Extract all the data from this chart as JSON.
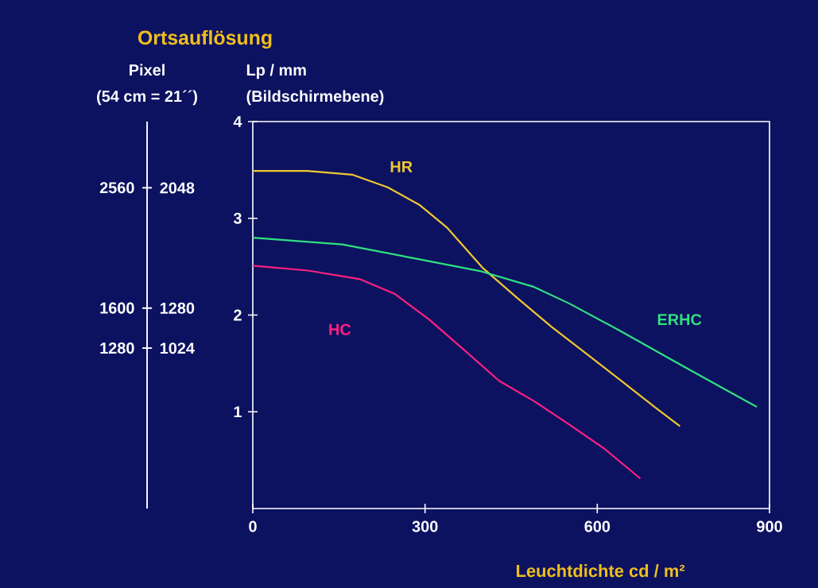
{
  "chart_data": {
    "type": "line",
    "title": "Ortsauflösung",
    "xlabel": "Leuchtdichte cd / m²",
    "ylabel": "Lp / mm",
    "y2label": "Pixel",
    "annotations": [
      "(54 cm = 21´´)",
      "(Bildschirmebene)"
    ],
    "xlim": [
      0,
      900
    ],
    "xticks": [
      0,
      300,
      600,
      900
    ],
    "ylim": [
      0,
      4
    ],
    "yticks": [
      1,
      2,
      3,
      4
    ],
    "y2lim": [
      0,
      2472
    ],
    "y2ticks": [
      2048,
      1280,
      1024
    ],
    "y3lim": [
      0,
      3088
    ],
    "y3ticks": [
      2560,
      1600,
      1280
    ],
    "legend": false,
    "grid": false,
    "marker": "none",
    "line_style": "solid",
    "series": [
      {
        "name": "HR",
        "color": "#f0c830",
        "x": [
          0,
          95,
          174,
          235,
          290,
          339,
          400,
          460,
          520,
          581,
          642,
          702,
          744
        ],
        "values": [
          3.49,
          3.49,
          3.45,
          3.32,
          3.14,
          2.9,
          2.49,
          2.18,
          1.88,
          1.6,
          1.32,
          1.04,
          0.85
        ]
      },
      {
        "name": "ERHC",
        "color": "#30e080",
        "x": [
          0,
          156,
          278,
          399,
          490,
          551,
          642,
          732,
          823,
          878
        ],
        "values": [
          2.8,
          2.73,
          2.59,
          2.45,
          2.29,
          2.12,
          1.83,
          1.53,
          1.23,
          1.05
        ]
      },
      {
        "name": "HC",
        "color": "#ff2080",
        "x": [
          0,
          96,
          187,
          247,
          308,
          368,
          429,
          490,
          551,
          612,
          675
        ],
        "values": [
          2.51,
          2.46,
          2.37,
          2.22,
          1.95,
          1.64,
          1.32,
          1.11,
          0.87,
          0.62,
          0.31
        ]
      }
    ]
  }
}
